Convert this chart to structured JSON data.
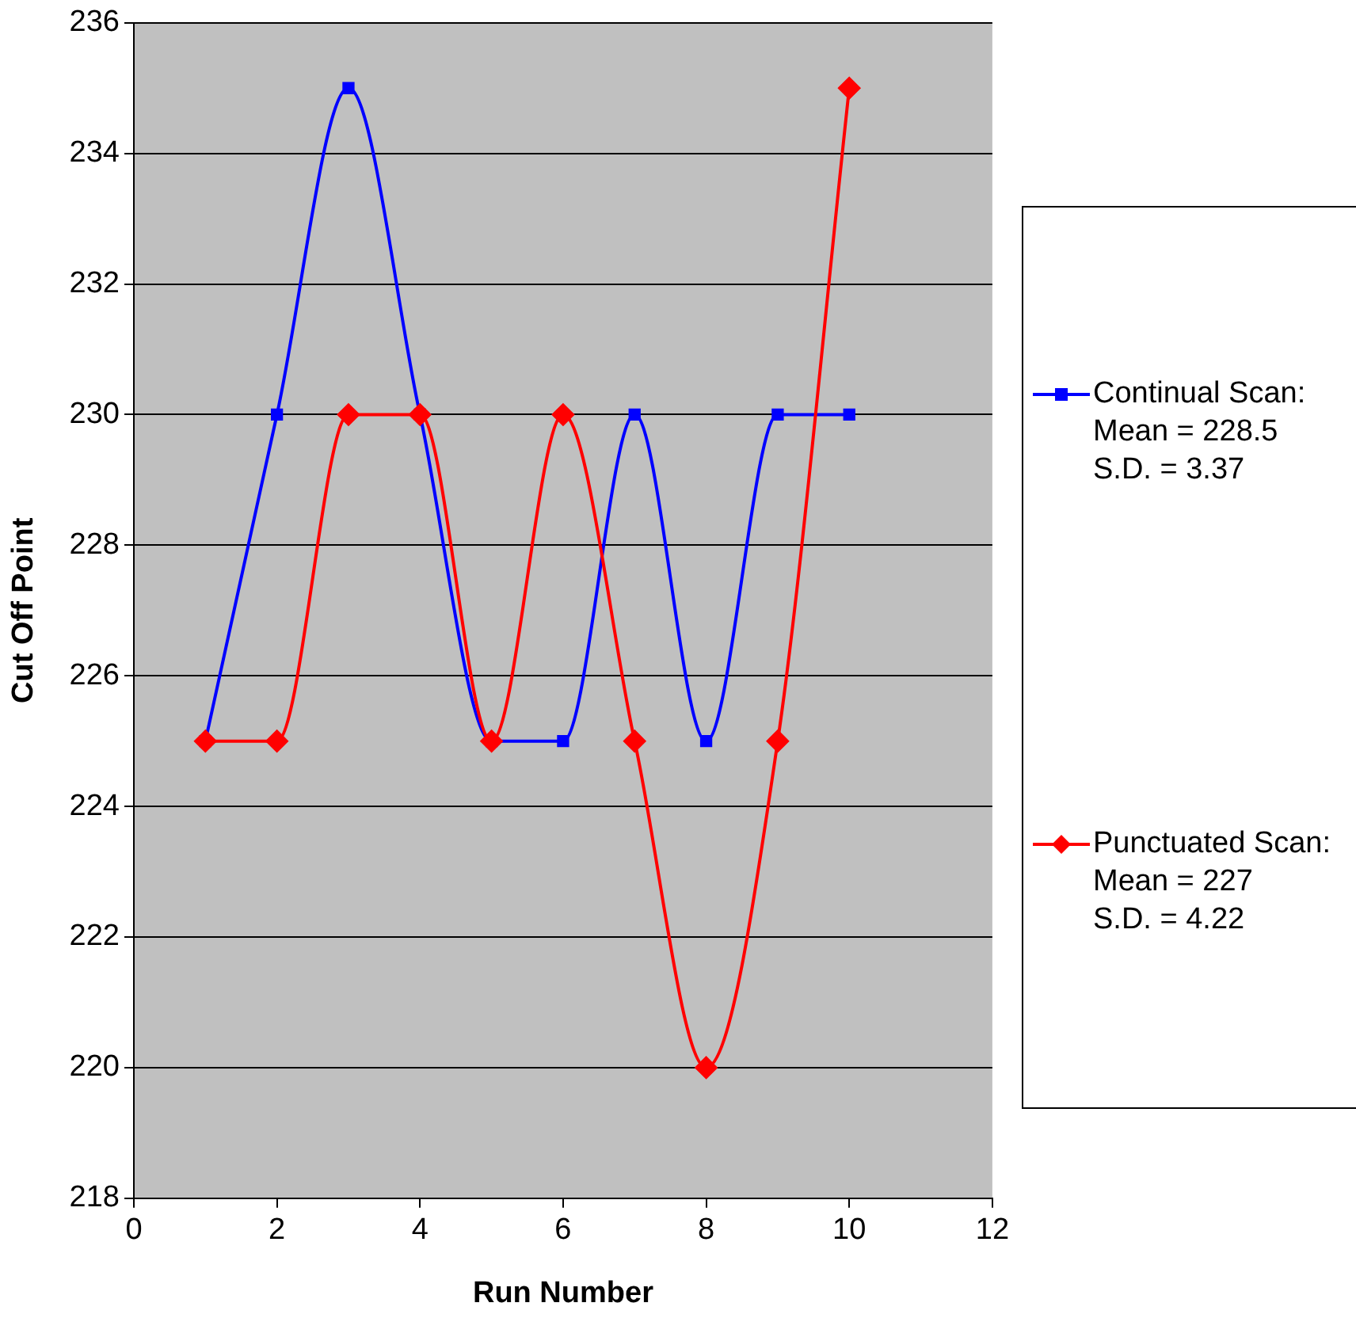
{
  "chart_data": {
    "type": "line",
    "xlabel": "Run Number",
    "ylabel": "Cut Off Point",
    "x": [
      1,
      2,
      3,
      4,
      5,
      6,
      7,
      8,
      9,
      10
    ],
    "series": [
      {
        "name": "Continual Scan:\nMean = 228.5\nS.D. = 3.37",
        "color": "#0000ff",
        "marker": "square",
        "values": [
          225,
          230,
          235,
          230,
          225,
          225,
          230,
          225,
          230,
          230
        ]
      },
      {
        "name": "Punctuated Scan:\nMean = 227\nS.D. = 4.22",
        "color": "#ff0000",
        "marker": "diamond",
        "values": [
          225,
          225,
          230,
          230,
          225,
          230,
          225,
          220,
          225,
          235
        ]
      }
    ],
    "xlim": [
      0,
      12
    ],
    "xticks": [
      0,
      2,
      4,
      6,
      8,
      10,
      12
    ],
    "ylim": [
      218,
      236
    ],
    "yticks": [
      218,
      220,
      222,
      224,
      226,
      228,
      230,
      232,
      234,
      236
    ],
    "grid": "y",
    "legend": "right"
  }
}
